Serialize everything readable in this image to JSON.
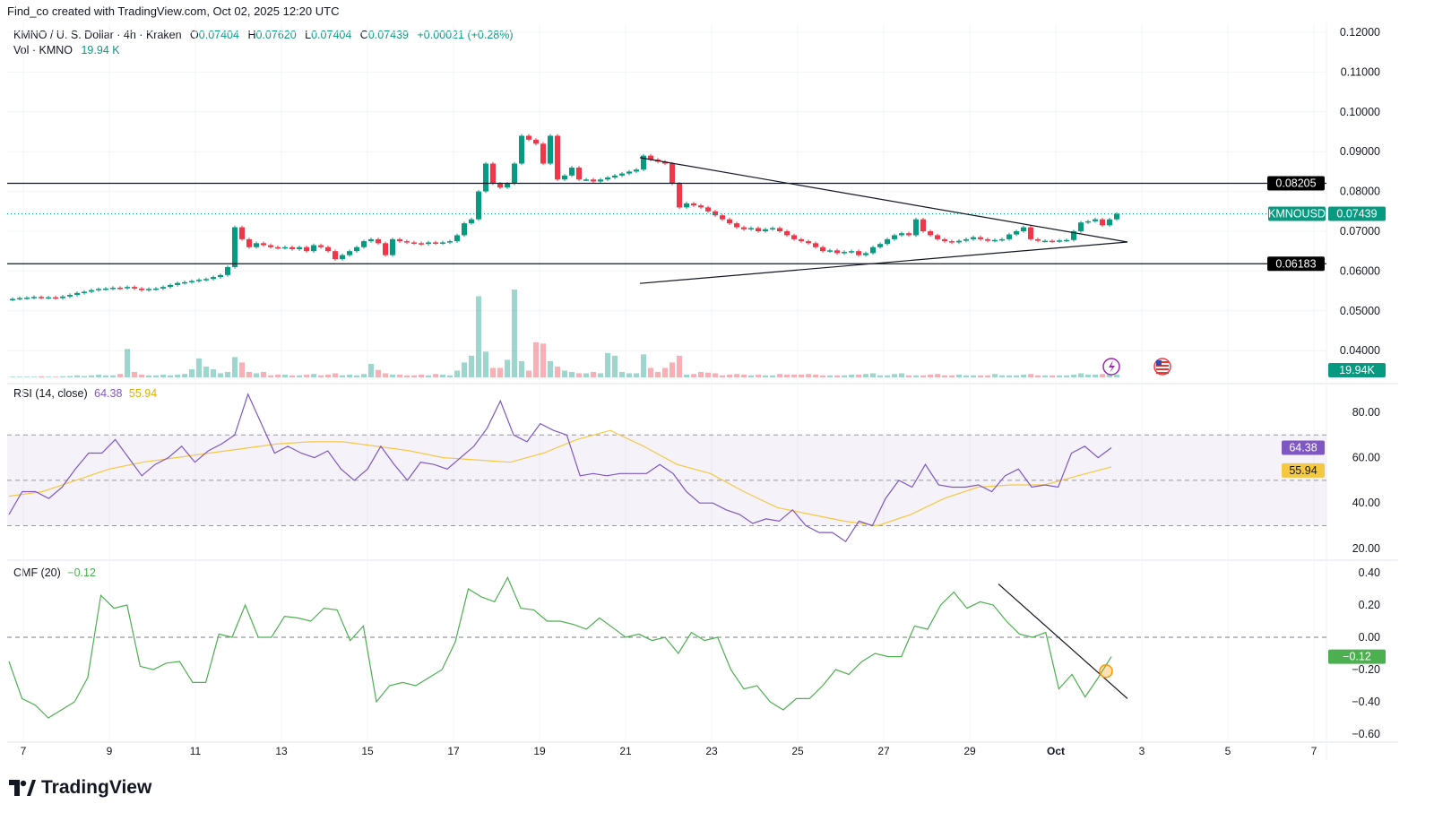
{
  "credit": "Find_co created with TradingView.com, Oct 02, 2025 12:20 UTC",
  "legend": {
    "symbol": "KMNO / U. S. Dollar · 4h · Kraken",
    "o_label": "O",
    "o": "0.07404",
    "h_label": "H",
    "h": "0.07620",
    "l_label": "L",
    "l": "0.07404",
    "c_label": "C",
    "c": "0.07439",
    "change": "+0.00021 (+0.28%)",
    "vol_label": "Vol · KMNO",
    "vol": "19.94 K"
  },
  "rsi_legend": {
    "label": "RSI (14, close)",
    "rsi": "64.38",
    "ma": "55.94"
  },
  "cmf_legend": {
    "label": "CMF (20)",
    "value": "−0.12"
  },
  "logo": "TradingView",
  "colors": {
    "up": "#089981",
    "down": "#f23645",
    "rsi": "#7e57c2",
    "rsi_ma": "#f5c842",
    "cmf": "#4caf50",
    "level": "#131722"
  },
  "icons": [
    "lightning-icon",
    "us-flag-icon"
  ],
  "price_labels": {
    "symbol_tag": "KMNOUSD",
    "last": "0.07439",
    "level_high": "0.08205",
    "level_low": "0.06183",
    "volume": "19.94K"
  },
  "chart_data": [
    {
      "type": "candlestick",
      "interval": "4h",
      "yticks": [
        "0.12000",
        "0.11000",
        "0.10000",
        "0.09000",
        "0.08000",
        "0.07000",
        "0.06000",
        "0.05000",
        "0.04000"
      ],
      "ylim": [
        0.034,
        0.1235
      ],
      "xticks": [
        "7",
        "9",
        "11",
        "13",
        "15",
        "17",
        "19",
        "21",
        "23",
        "25",
        "27",
        "29",
        "Oct",
        "3",
        "5",
        "7"
      ],
      "horizontal_levels": [
        0.08205,
        0.06183
      ],
      "last_price": 0.07439,
      "trendlines": [
        {
          "from": [
            "2025-09-21T08:00",
            0.0885
          ],
          "to": [
            "2025-10-02T16:00",
            0.0673
          ]
        },
        {
          "from": [
            "2025-09-21T08:00",
            0.0569
          ],
          "to": [
            "2025-10-02T16:00",
            0.0673
          ]
        }
      ],
      "days": [
        {
          "date": "2025-09-06",
          "start_hour": 16,
          "closes": [
            0.053,
            0.0532
          ],
          "volume_k": [
            5,
            5
          ]
        },
        {
          "date": "2025-09-07",
          "closes": [
            0.0533,
            0.0535,
            0.0533,
            0.0534,
            0.0532,
            0.0536
          ],
          "volume_k": [
            5,
            5,
            8,
            5,
            5,
            8
          ]
        },
        {
          "date": "2025-09-08",
          "closes": [
            0.054,
            0.0545,
            0.0548,
            0.0552,
            0.0555,
            0.0556
          ],
          "volume_k": [
            10,
            15,
            10,
            15,
            20,
            15
          ]
        },
        {
          "date": "2025-09-09",
          "closes": [
            0.0558,
            0.0557,
            0.056,
            0.0556,
            0.0552,
            0.0555
          ],
          "volume_k": [
            15,
            25,
            210,
            40,
            20,
            15
          ]
        },
        {
          "date": "2025-09-10",
          "closes": [
            0.0556,
            0.056,
            0.0565,
            0.057,
            0.0572,
            0.0575
          ],
          "volume_k": [
            15,
            20,
            15,
            20,
            25,
            60
          ]
        },
        {
          "date": "2025-09-11",
          "closes": [
            0.0578,
            0.058,
            0.0585,
            0.059,
            0.061,
            0.071
          ],
          "volume_k": [
            140,
            80,
            60,
            30,
            40,
            150
          ]
        },
        {
          "date": "2025-09-12",
          "closes": [
            0.068,
            0.066,
            0.067,
            0.0665,
            0.066,
            0.0658
          ],
          "volume_k": [
            110,
            40,
            30,
            40,
            15,
            20
          ]
        },
        {
          "date": "2025-09-13",
          "closes": [
            0.066,
            0.0655,
            0.066,
            0.065,
            0.0665,
            0.066
          ],
          "volume_k": [
            20,
            15,
            15,
            20,
            25,
            15
          ]
        },
        {
          "date": "2025-09-14",
          "closes": [
            0.065,
            0.063,
            0.064,
            0.065,
            0.066,
            0.0675
          ],
          "volume_k": [
            20,
            30,
            15,
            20,
            15,
            25
          ]
        },
        {
          "date": "2025-09-15",
          "closes": [
            0.068,
            0.067,
            0.064,
            0.068,
            0.0675,
            0.0672
          ],
          "volume_k": [
            100,
            55,
            30,
            20,
            20,
            15
          ]
        },
        {
          "date": "2025-09-16",
          "closes": [
            0.067,
            0.0668,
            0.0672,
            0.067,
            0.0672,
            0.0675
          ],
          "volume_k": [
            15,
            20,
            15,
            25,
            20,
            15
          ]
        },
        {
          "date": "2025-09-17",
          "closes": [
            0.069,
            0.072,
            0.073,
            0.08,
            0.087,
            0.082
          ],
          "volume_k": [
            50,
            110,
            160,
            600,
            190,
            70
          ]
        },
        {
          "date": "2025-09-18",
          "closes": [
            0.081,
            0.082,
            0.087,
            0.094,
            0.093,
            0.092
          ],
          "volume_k": [
            70,
            130,
            650,
            120,
            50,
            260
          ]
        },
        {
          "date": "2025-09-19",
          "closes": [
            0.087,
            0.094,
            0.083,
            0.084,
            0.086,
            0.083
          ],
          "volume_k": [
            250,
            120,
            80,
            50,
            40,
            30
          ]
        },
        {
          "date": "2025-09-20",
          "closes": [
            0.083,
            0.0825,
            0.083,
            0.0835,
            0.084,
            0.0845
          ],
          "volume_k": [
            30,
            40,
            30,
            180,
            160,
            40
          ]
        },
        {
          "date": "2025-09-21",
          "closes": [
            0.085,
            0.0855,
            0.089,
            0.088,
            0.0875,
            0.087
          ],
          "volume_k": [
            30,
            30,
            170,
            70,
            40,
            70
          ]
        },
        {
          "date": "2025-09-22",
          "closes": [
            0.082,
            0.076,
            0.077,
            0.0765,
            0.076,
            0.075
          ],
          "volume_k": [
            110,
            160,
            20,
            25,
            40,
            35
          ]
        },
        {
          "date": "2025-09-23",
          "closes": [
            0.074,
            0.073,
            0.072,
            0.071,
            0.0705,
            0.0708
          ],
          "volume_k": [
            30,
            15,
            20,
            25,
            20,
            15
          ]
        },
        {
          "date": "2025-09-24",
          "closes": [
            0.07,
            0.0705,
            0.0708,
            0.07,
            0.069,
            0.068
          ],
          "volume_k": [
            20,
            15,
            15,
            25,
            20,
            20
          ]
        },
        {
          "date": "2025-09-25",
          "closes": [
            0.0675,
            0.067,
            0.066,
            0.065,
            0.0652,
            0.0645
          ],
          "volume_k": [
            20,
            25,
            20,
            15,
            15,
            15
          ]
        },
        {
          "date": "2025-09-26",
          "closes": [
            0.0648,
            0.065,
            0.064,
            0.0645,
            0.066,
            0.0668
          ],
          "volume_k": [
            15,
            20,
            20,
            25,
            30,
            15
          ]
        },
        {
          "date": "2025-09-27",
          "closes": [
            0.068,
            0.069,
            0.0695,
            0.069,
            0.073,
            0.07
          ],
          "volume_k": [
            15,
            25,
            30,
            15,
            15,
            15
          ]
        },
        {
          "date": "2025-09-28",
          "closes": [
            0.069,
            0.068,
            0.0675,
            0.0672,
            0.0676,
            0.068
          ],
          "volume_k": [
            20,
            25,
            15,
            15,
            20,
            15
          ]
        },
        {
          "date": "2025-09-29",
          "closes": [
            0.0685,
            0.068,
            0.0676,
            0.0678,
            0.068,
            0.0692
          ],
          "volume_k": [
            15,
            15,
            15,
            25,
            15,
            15
          ]
        },
        {
          "date": "2025-09-30",
          "closes": [
            0.07,
            0.071,
            0.068,
            0.0676,
            0.0676,
            0.0675
          ],
          "volume_k": [
            15,
            20,
            25,
            15,
            15,
            15
          ]
        },
        {
          "date": "2025-10-01",
          "closes": [
            0.0677,
            0.0678,
            0.07,
            0.0722,
            0.0725,
            0.073
          ],
          "volume_k": [
            15,
            15,
            20,
            30,
            20,
            20
          ]
        },
        {
          "date": "2025-10-02",
          "closes": [
            0.0715,
            0.073,
            0.07439
          ],
          "volume_k": [
            25,
            25,
            19.94
          ]
        }
      ]
    },
    {
      "type": "line",
      "title": "RSI (14, close)",
      "yticks": [
        "80.00",
        "60.00",
        "40.00",
        "20.00"
      ],
      "bands": [
        70,
        50,
        30
      ],
      "series": [
        {
          "name": "RSI",
          "values": [
            35,
            45,
            45,
            42,
            47,
            55,
            62,
            62,
            68,
            60,
            52,
            57,
            60,
            65,
            58,
            63,
            66,
            70,
            88,
            75,
            62,
            65,
            62,
            60,
            63,
            55,
            50,
            55,
            65,
            57,
            50,
            58,
            57,
            55,
            60,
            65,
            73,
            85,
            70,
            67,
            75,
            72,
            70,
            52,
            53,
            52,
            53,
            53,
            53,
            57,
            53,
            45,
            40,
            40,
            37,
            35,
            31,
            33,
            32,
            37,
            30,
            27,
            27,
            23,
            32,
            30,
            42,
            50,
            47,
            57,
            48,
            47,
            47,
            48,
            45,
            52,
            55,
            47,
            48,
            47,
            62,
            65,
            60,
            64.38
          ]
        },
        {
          "name": "MA",
          "values": [
            43,
            45,
            50,
            55,
            58,
            60,
            62,
            64,
            66,
            67,
            67,
            65,
            63,
            60,
            59,
            58,
            62,
            68,
            72,
            65,
            57,
            53,
            45,
            38,
            35,
            32,
            30,
            35,
            42,
            47,
            48,
            48,
            52,
            55.94
          ]
        }
      ]
    },
    {
      "type": "line",
      "title": "CMF (20)",
      "yticks": [
        "0.40",
        "0.20",
        "0.00",
        "−0.20",
        "−0.40",
        "−0.60"
      ],
      "zero_line": 0,
      "trendline": {
        "from": [
          "2025-09-29T16:00",
          0.33
        ],
        "to": [
          "2025-10-02T16:00",
          -0.38
        ]
      },
      "marker": [
        "2025-10-02T04:00",
        -0.21
      ],
      "series": [
        {
          "name": "CMF",
          "values": [
            -0.15,
            -0.38,
            -0.42,
            -0.5,
            -0.45,
            -0.4,
            -0.25,
            0.26,
            0.18,
            0.2,
            -0.18,
            -0.2,
            -0.16,
            -0.15,
            -0.28,
            -0.28,
            0.02,
            0.0,
            0.2,
            0.0,
            0.0,
            0.13,
            0.12,
            0.1,
            0.18,
            0.17,
            -0.02,
            0.07,
            -0.4,
            -0.3,
            -0.28,
            -0.3,
            -0.25,
            -0.2,
            -0.03,
            0.3,
            0.25,
            0.22,
            0.37,
            0.18,
            0.17,
            0.1,
            0.1,
            0.08,
            0.05,
            0.12,
            0.06,
            0.0,
            0.02,
            -0.02,
            0.0,
            -0.1,
            0.03,
            -0.02,
            0.0,
            -0.2,
            -0.32,
            -0.3,
            -0.4,
            -0.45,
            -0.38,
            -0.38,
            -0.3,
            -0.2,
            -0.23,
            -0.15,
            -0.1,
            -0.12,
            -0.12,
            0.07,
            0.05,
            0.2,
            0.28,
            0.18,
            0.22,
            0.2,
            0.1,
            0.02,
            0.0,
            0.03,
            -0.32,
            -0.23,
            -0.37,
            -0.25,
            -0.12
          ]
        }
      ]
    }
  ]
}
